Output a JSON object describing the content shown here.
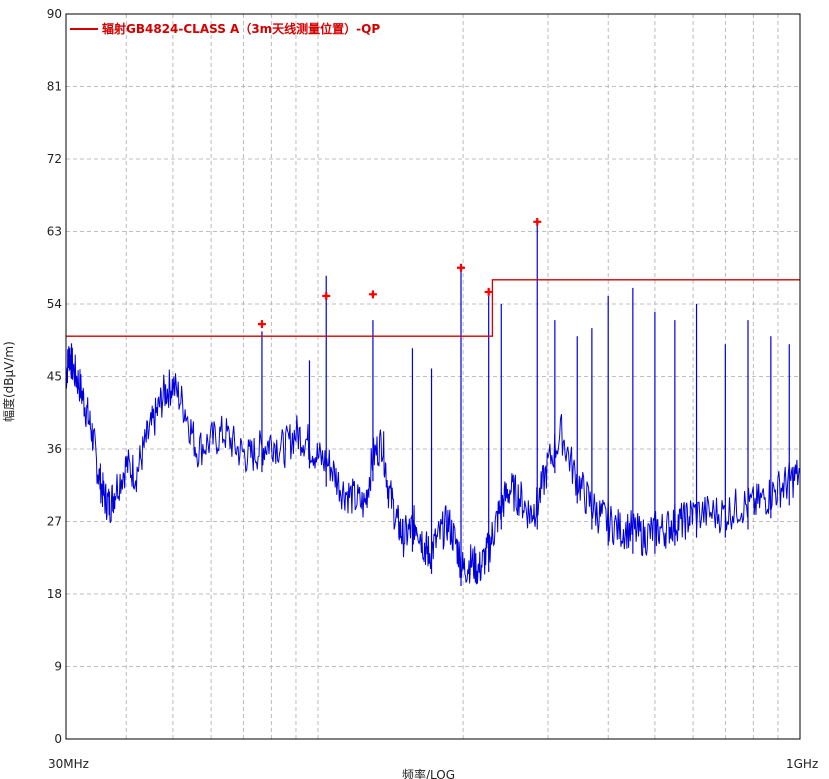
{
  "chart_data": {
    "type": "line",
    "xscale": "log",
    "xlim": [
      30,
      1000
    ],
    "ylim": [
      0,
      90
    ],
    "grid": true,
    "legend_position": "top-left",
    "xlabel": "频率/LOG",
    "ylabel": "幅度(dBμV/m)",
    "x_tick_labels": [
      "30MHz",
      "1GHz"
    ],
    "y_ticks": [
      0,
      9,
      18,
      27,
      36,
      45,
      54,
      63,
      72,
      81,
      90
    ],
    "y_tick_labels": [
      "0",
      "9",
      "18",
      "27",
      "36",
      "45",
      "54",
      "63",
      "72",
      "81",
      "90"
    ],
    "series": [
      {
        "name": "辐射GB4824-CLASS A（3m天线测量位置）-QP",
        "kind": "limit",
        "color": "#d40000",
        "x": [
          30,
          230,
          230,
          1000
        ],
        "y": [
          50,
          50,
          57,
          57
        ]
      },
      {
        "kind": "measurement-trace",
        "color": "#0000dd",
        "x": [
          30,
          30.5,
          31,
          32,
          33,
          34,
          35,
          36,
          37,
          38,
          40,
          42,
          44,
          46,
          48,
          50,
          53,
          56,
          60,
          64,
          68,
          72,
          76,
          80,
          85,
          90,
          95,
          100,
          106,
          112,
          118,
          125,
          130,
          136,
          140,
          146,
          150,
          156,
          160,
          166,
          170,
          178,
          186,
          194,
          200,
          208,
          216,
          224,
          232,
          240,
          250,
          262,
          275,
          285,
          300,
          320,
          340,
          360,
          380,
          400,
          425,
          450,
          475,
          500,
          525,
          550,
          575,
          600,
          650,
          700,
          750,
          800,
          850,
          900,
          950,
          1000
        ],
        "y": [
          45,
          48,
          46,
          44,
          41,
          38,
          33,
          30,
          29,
          31,
          34,
          33,
          37,
          40,
          43,
          44,
          41,
          36,
          37,
          38,
          36,
          35,
          36,
          37,
          36,
          38,
          37,
          35,
          34,
          31,
          30,
          29,
          35,
          37,
          31,
          27,
          25,
          26,
          27,
          24,
          23,
          25,
          27,
          24,
          21,
          22,
          21,
          23,
          26,
          29,
          31,
          30,
          28,
          29,
          34,
          38,
          33,
          30,
          28,
          27,
          26,
          26,
          25,
          26,
          26,
          27,
          27,
          28,
          28,
          28,
          29,
          29,
          30,
          31,
          32,
          33
        ]
      }
    ],
    "spurs": [
      {
        "x": 76.5,
        "y": 50.6
      },
      {
        "x": 96,
        "y": 47
      },
      {
        "x": 104,
        "y": 57.5
      },
      {
        "x": 130,
        "y": 52
      },
      {
        "x": 157,
        "y": 48.5
      },
      {
        "x": 172,
        "y": 46
      },
      {
        "x": 198,
        "y": 58.3
      },
      {
        "x": 226,
        "y": 55
      },
      {
        "x": 240,
        "y": 54
      },
      {
        "x": 285,
        "y": 64
      },
      {
        "x": 310,
        "y": 52
      },
      {
        "x": 345,
        "y": 50
      },
      {
        "x": 370,
        "y": 51
      },
      {
        "x": 400,
        "y": 55
      },
      {
        "x": 450,
        "y": 56
      },
      {
        "x": 500,
        "y": 53
      },
      {
        "x": 550,
        "y": 52
      },
      {
        "x": 610,
        "y": 54
      },
      {
        "x": 700,
        "y": 49
      },
      {
        "x": 780,
        "y": 52
      },
      {
        "x": 870,
        "y": 50
      },
      {
        "x": 950,
        "y": 49
      }
    ],
    "markers": [
      {
        "x": 76.5,
        "y": 51.5
      },
      {
        "x": 104,
        "y": 55
      },
      {
        "x": 130,
        "y": 55.2
      },
      {
        "x": 198,
        "y": 58.5
      },
      {
        "x": 226,
        "y": 55.5
      },
      {
        "x": 285,
        "y": 64.2
      }
    ],
    "marker_color": "#ff0000"
  }
}
